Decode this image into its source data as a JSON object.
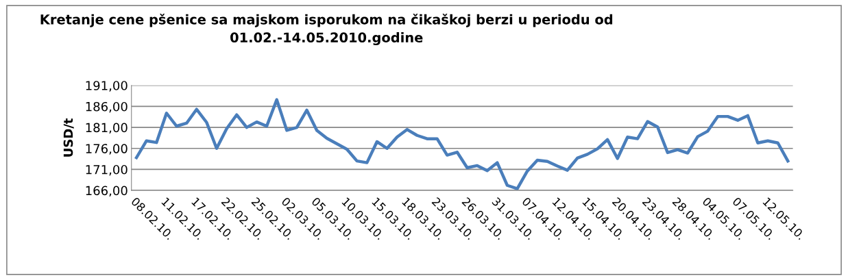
{
  "chart_data": {
    "type": "line",
    "title": "Kretanje cene pšenice sa majskom isporukom na čikaškoj berzi u periodu od\n01.02.-14.05.2010.godine",
    "ylabel": "USD/t",
    "categories": [
      "08.02.10.",
      null,
      null,
      "11.02.10.",
      null,
      null,
      "17.02.10.",
      null,
      null,
      "22.02.10.",
      null,
      null,
      "25.02.10.",
      null,
      null,
      "02.03.10.",
      null,
      null,
      "05.03.10.",
      null,
      null,
      "10.03.10.",
      null,
      null,
      "15.03.10.",
      null,
      null,
      "18.03.10.",
      null,
      null,
      "23.03.10.",
      null,
      null,
      "26.03.10.",
      null,
      null,
      "31.03.10.",
      null,
      null,
      "07.04.10.",
      null,
      null,
      "12.04.10.",
      null,
      null,
      "15.04.10.",
      null,
      null,
      "20.04.10.",
      null,
      null,
      "23.04.10.",
      null,
      null,
      "28.04.10.",
      null,
      null,
      "04.05.10.",
      null,
      null,
      "07.05.10.",
      null,
      null,
      "12.05.10.",
      null,
      null
    ],
    "series": [
      {
        "color": "#4a7ebb",
        "values": [
          173.8,
          177.8,
          177.4,
          184.4,
          181.3,
          182.0,
          185.3,
          182.2,
          176.0,
          180.7,
          184.0,
          181.0,
          182.3,
          181.3,
          187.6,
          180.3,
          181.0,
          185.1,
          180.3,
          178.4,
          177.1,
          175.8,
          173.0,
          172.6,
          177.6,
          176.0,
          178.7,
          180.5,
          179.1,
          178.3,
          178.3,
          174.4,
          175.1,
          171.4,
          171.9,
          170.7,
          172.6,
          167.2,
          166.4,
          170.6,
          173.2,
          172.9,
          171.8,
          170.8,
          173.7,
          174.6,
          175.9,
          178.1,
          173.6,
          178.7,
          178.3,
          182.4,
          181.1,
          175.0,
          175.7,
          174.9,
          178.8,
          180.1,
          183.6,
          183.6,
          182.7,
          183.8,
          177.3,
          177.8,
          177.3,
          173.0
        ]
      }
    ],
    "ylim": [
      166,
      191
    ],
    "yticks": [
      {
        "value": 166,
        "label": "166,00"
      },
      {
        "value": 171,
        "label": "171,00"
      },
      {
        "value": 176,
        "label": "176,00"
      },
      {
        "value": 181,
        "label": "181,00"
      },
      {
        "value": 186,
        "label": "186,00"
      },
      {
        "value": 191,
        "label": "191,00"
      }
    ],
    "grid": "y",
    "legend": false,
    "marker": "none",
    "line_style": "solid"
  }
}
